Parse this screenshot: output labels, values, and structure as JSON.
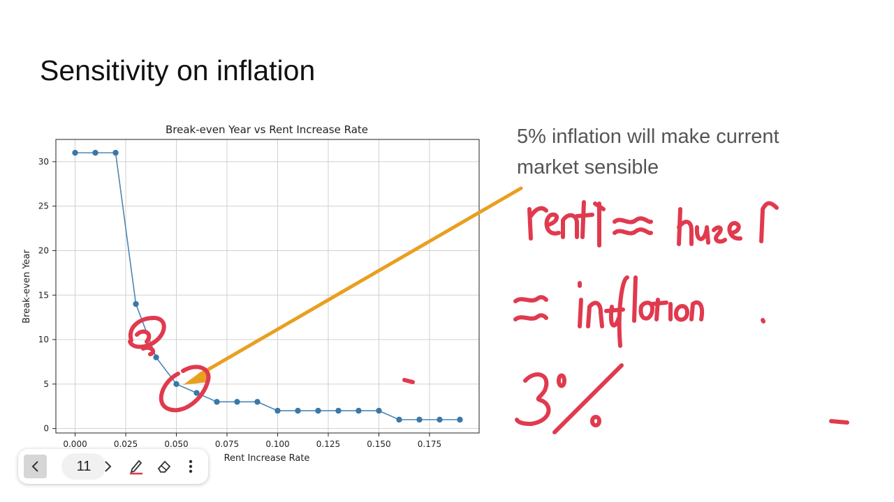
{
  "slide": {
    "title": "Sensitivity on inflation",
    "callout": "5% inflation will make current market sensible"
  },
  "chart_data": {
    "type": "line",
    "title": "Break-even Year vs Rent Increase Rate",
    "xlabel": "Rent Increase Rate",
    "ylabel": "Break-even Year",
    "x": [
      0.0,
      0.01,
      0.02,
      0.03,
      0.04,
      0.05,
      0.06,
      0.07,
      0.08,
      0.09,
      0.1,
      0.11,
      0.12,
      0.13,
      0.14,
      0.15,
      0.16,
      0.17,
      0.18,
      0.19
    ],
    "y": [
      31,
      31,
      31,
      14,
      8,
      5,
      4,
      3,
      3,
      3,
      2,
      2,
      2,
      2,
      2,
      2,
      1,
      1,
      1,
      1
    ],
    "xticks": [
      "0.000",
      "0.025",
      "0.050",
      "0.075",
      "0.100",
      "0.125",
      "0.150",
      "0.175"
    ],
    "xtick_values": [
      0,
      0.025,
      0.05,
      0.075,
      0.1,
      0.125,
      0.15,
      0.175
    ],
    "yticks": [
      "0",
      "5",
      "10",
      "15",
      "20",
      "25",
      "30"
    ],
    "ytick_values": [
      0,
      5,
      10,
      15,
      20,
      25,
      30
    ],
    "xlim": [
      -0.0095,
      0.1995
    ],
    "ylim": [
      -0.5,
      32.5
    ],
    "grid": true,
    "line_color": "#4a86b4",
    "marker_color": "#3a78a8"
  },
  "annotations": {
    "ink_color": "#e03a4e",
    "arrow_color": "#e8a020",
    "handwriting": [
      "rent↑ ≈ house↑",
      "≈ inflation",
      "3%"
    ]
  },
  "toolbar": {
    "page_number": "11",
    "prev_icon": "chevron-left-icon",
    "next_icon": "chevron-right-icon",
    "pen_icon": "pen-icon",
    "eraser_icon": "eraser-icon",
    "more_icon": "more-vertical-icon"
  }
}
